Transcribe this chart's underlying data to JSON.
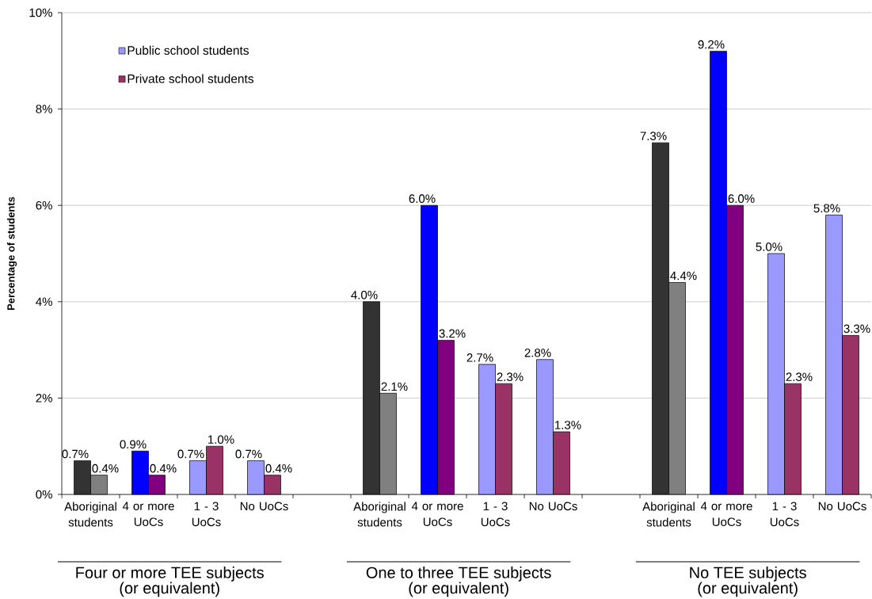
{
  "chart_data": {
    "type": "bar",
    "ylabel": "Percentage of students",
    "categories": [
      "Aboriginal students",
      "4 or more UoCs",
      "1 - 3 UoCs",
      "No UoCs",
      null,
      "Aboriginal students",
      "4 or more UoCs",
      "1 - 3 UoCs",
      "No UoCs",
      null,
      "Aboriginal students",
      "4 or more UoCs",
      "1 - 3 UoCs",
      "No UoCs"
    ],
    "series": [
      {
        "name": "Public school students",
        "color": "#9999ff",
        "colors": [
          "#333333",
          "#0000ff",
          "#9999ff",
          "#9999ff",
          null,
          "#333333",
          "#0000ff",
          "#9999ff",
          "#9999ff",
          null,
          "#333333",
          "#0000ff",
          "#9999ff",
          "#9999ff"
        ],
        "values": [
          0.7,
          0.9,
          0.7,
          0.7,
          null,
          4.0,
          6.0,
          2.7,
          2.8,
          null,
          7.3,
          9.2,
          5.0,
          5.8
        ],
        "value_labels": [
          "0.7%",
          "0.9%",
          "0.7%",
          "0.7%",
          null,
          "4.0%",
          "6.0%",
          "2.7%",
          "2.8%",
          null,
          "7.3%",
          "9.2%",
          "5.0%",
          "5.8%"
        ]
      },
      {
        "name": "Private school students",
        "color": "#993366",
        "colors": [
          "#808080",
          "#800080",
          "#993366",
          "#993366",
          null,
          "#808080",
          "#800080",
          "#993366",
          "#993366",
          null,
          "#808080",
          "#800080",
          "#993366",
          "#993366"
        ],
        "values": [
          0.4,
          0.4,
          1.0,
          0.4,
          null,
          2.1,
          3.2,
          2.3,
          1.3,
          null,
          4.4,
          6.0,
          2.3,
          3.3
        ],
        "value_labels": [
          "0.4%",
          "0.4%",
          "1.0%",
          "0.4%",
          null,
          "2.1%",
          "3.2%",
          "2.3%",
          "1.3%",
          null,
          "4.4%",
          "6.0%",
          "2.3%",
          "3.3%"
        ]
      }
    ],
    "ylim": [
      0,
      10
    ],
    "yticks": [
      {
        "value": 0,
        "label": "0%"
      },
      {
        "value": 2,
        "label": "2%"
      },
      {
        "value": 4,
        "label": "4%"
      },
      {
        "value": 6,
        "label": "6%"
      },
      {
        "value": 8,
        "label": "8%"
      },
      {
        "value": 10,
        "label": "10%"
      }
    ],
    "grid": "y",
    "legend": "top left",
    "annotations": [
      "Four or more TEE subjects",
      "(or equivalent)",
      "One to three TEE subjects",
      "(or equivalent)",
      "No TEE subjects",
      "(or equivalent)"
    ]
  }
}
